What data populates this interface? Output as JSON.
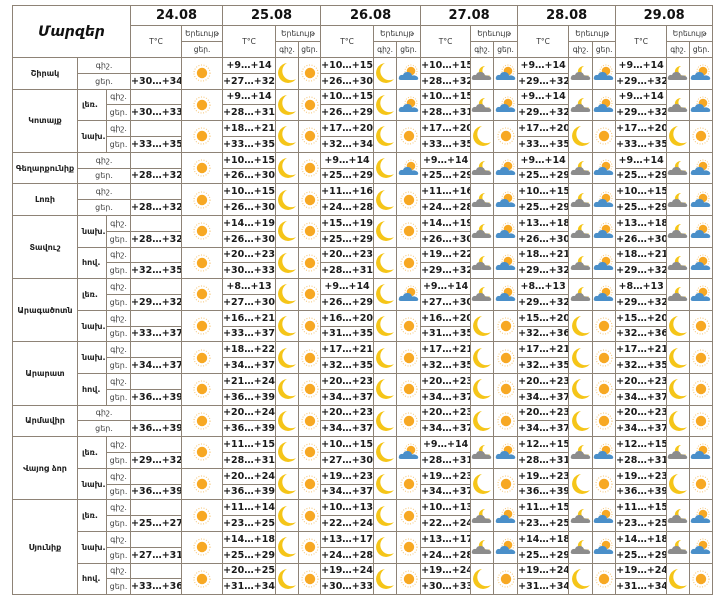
{
  "header": {
    "title": "Մարզեր",
    "temp_label": "T°C",
    "phenomenon_label": "Երեւույթ",
    "night_label": "գիշ.",
    "day_label": "ցեր.",
    "dates": [
      "24.08",
      "25.08",
      "26.08",
      "27.08",
      "28.08",
      "29.08"
    ]
  },
  "colors": {
    "border": "#8e8376",
    "sun": "#f7a823",
    "moon": "#f5c518",
    "cloud_blue": "#4a8fc9",
    "cloud_gray": "#8c8c8c"
  },
  "regions": [
    {
      "name": "Շիրակ",
      "zones": [
        {
          "label": null,
          "d24": "+30…+34",
          "t": [
            [
              "+9…+14",
              "+27…+32"
            ],
            [
              "+10…+15",
              "+26…+30"
            ],
            [
              "+10…+15",
              "+28…+32"
            ],
            [
              "+9…+14",
              "+29…+32"
            ],
            [
              "+9…+14",
              "+29…+32"
            ]
          ],
          "w": [
            [
              "moon",
              "sun"
            ],
            [
              "moon",
              "cloud-sun"
            ],
            [
              "cloud-moon",
              "cloud-sun"
            ],
            [
              "cloud-moon",
              "cloud-sun"
            ],
            [
              "cloud-moon",
              "cloud-sun"
            ]
          ]
        }
      ]
    },
    {
      "name": "Կոտայք",
      "zones": [
        {
          "label": "լեռ.",
          "d24": "+30…+33",
          "t": [
            [
              "+9…+14",
              "+28…+31"
            ],
            [
              "+10…+15",
              "+26…+29"
            ],
            [
              "+10…+15",
              "+28…+31"
            ],
            [
              "+9…+14",
              "+29…+32"
            ],
            [
              "+9…+14",
              "+29…+32"
            ]
          ],
          "w": [
            [
              "moon",
              "sun"
            ],
            [
              "moon",
              "cloud-sun"
            ],
            [
              "cloud-moon",
              "cloud-sun"
            ],
            [
              "cloud-moon",
              "cloud-sun"
            ],
            [
              "cloud-moon",
              "cloud-sun"
            ]
          ]
        },
        {
          "label": "նախ.",
          "d24": "+33…+35",
          "t": [
            [
              "+18…+21",
              "+33…+35"
            ],
            [
              "+17…+20",
              "+32…+34"
            ],
            [
              "+17…+20",
              "+33…+35"
            ],
            [
              "+17…+20",
              "+33…+35"
            ],
            [
              "+17…+20",
              "+33…+35"
            ]
          ],
          "w": [
            [
              "moon",
              "sun"
            ],
            [
              "moon",
              "sun"
            ],
            [
              "moon",
              "sun"
            ],
            [
              "moon",
              "sun"
            ],
            [
              "moon",
              "sun"
            ]
          ]
        }
      ]
    },
    {
      "name": "Գեղարքունիք",
      "zones": [
        {
          "label": null,
          "d24": "+28…+32",
          "t": [
            [
              "+10…+15",
              "+26…+30"
            ],
            [
              "+9…+14",
              "+25…+29"
            ],
            [
              "+9…+14",
              "+25…+29"
            ],
            [
              "+9…+14",
              "+25…+29"
            ],
            [
              "+9…+14",
              "+25…+29"
            ]
          ],
          "w": [
            [
              "moon",
              "sun"
            ],
            [
              "moon",
              "cloud-sun"
            ],
            [
              "cloud-moon",
              "cloud-sun"
            ],
            [
              "cloud-moon",
              "cloud-sun"
            ],
            [
              "cloud-moon",
              "cloud-sun"
            ]
          ]
        }
      ]
    },
    {
      "name": "Լոռի",
      "zones": [
        {
          "label": null,
          "d24": "+28…+32",
          "t": [
            [
              "+10…+15",
              "+26…+30"
            ],
            [
              "+11…+16",
              "+24…+28"
            ],
            [
              "+11…+16",
              "+24…+28"
            ],
            [
              "+10…+15",
              "+25…+29"
            ],
            [
              "+10…+15",
              "+25…+29"
            ]
          ],
          "w": [
            [
              "moon",
              "sun"
            ],
            [
              "moon",
              "sun"
            ],
            [
              "cloud-moon",
              "cloud-sun"
            ],
            [
              "cloud-moon",
              "cloud-sun"
            ],
            [
              "cloud-moon",
              "cloud-sun"
            ]
          ]
        }
      ]
    },
    {
      "name": "Տավուշ",
      "zones": [
        {
          "label": "նախ.",
          "d24": "+28…+32",
          "t": [
            [
              "+14…+19",
              "+26…+30"
            ],
            [
              "+15…+19",
              "+25…+29"
            ],
            [
              "+14…+19",
              "+26…+30"
            ],
            [
              "+13…+18",
              "+26…+30"
            ],
            [
              "+13…+18",
              "+26…+30"
            ]
          ],
          "w": [
            [
              "moon",
              "sun"
            ],
            [
              "moon",
              "sun"
            ],
            [
              "cloud-moon",
              "cloud-sun"
            ],
            [
              "cloud-moon",
              "cloud-sun"
            ],
            [
              "cloud-moon",
              "cloud-sun"
            ]
          ]
        },
        {
          "label": "հով.",
          "d24": "+32…+35",
          "t": [
            [
              "+20…+23",
              "+30…+33"
            ],
            [
              "+20…+23",
              "+28…+31"
            ],
            [
              "+19…+22",
              "+29…+32"
            ],
            [
              "+18…+21",
              "+29…+32"
            ],
            [
              "+18…+21",
              "+29…+32"
            ]
          ],
          "w": [
            [
              "moon",
              "sun"
            ],
            [
              "moon",
              "sun"
            ],
            [
              "cloud-moon",
              "cloud-sun"
            ],
            [
              "cloud-moon",
              "cloud-sun"
            ],
            [
              "cloud-moon",
              "cloud-sun"
            ]
          ]
        }
      ]
    },
    {
      "name": "Արագածոտն",
      "zones": [
        {
          "label": "լեռ.",
          "d24": "+29…+32",
          "t": [
            [
              "+8…+13",
              "+27…+30"
            ],
            [
              "+9…+14",
              "+26…+29"
            ],
            [
              "+9…+14",
              "+27…+30"
            ],
            [
              "+8…+13",
              "+29…+32"
            ],
            [
              "+8…+13",
              "+29…+32"
            ]
          ],
          "w": [
            [
              "moon",
              "sun"
            ],
            [
              "moon",
              "cloud-sun"
            ],
            [
              "cloud-moon",
              "cloud-sun"
            ],
            [
              "cloud-moon",
              "cloud-sun"
            ],
            [
              "cloud-moon",
              "cloud-sun"
            ]
          ]
        },
        {
          "label": "նախ.",
          "d24": "+33…+37",
          "t": [
            [
              "+16…+21",
              "+33…+37"
            ],
            [
              "+16…+20",
              "+31…+35"
            ],
            [
              "+16…+20",
              "+31…+35"
            ],
            [
              "+15…+20",
              "+32…+36"
            ],
            [
              "+15…+20",
              "+32…+36"
            ]
          ],
          "w": [
            [
              "moon",
              "sun"
            ],
            [
              "moon",
              "sun"
            ],
            [
              "moon",
              "sun"
            ],
            [
              "moon",
              "sun"
            ],
            [
              "moon",
              "sun"
            ]
          ]
        }
      ]
    },
    {
      "name": "Արարատ",
      "zones": [
        {
          "label": "նախ.",
          "d24": "+34…+37",
          "t": [
            [
              "+18…+22",
              "+34…+37"
            ],
            [
              "+17…+21",
              "+32…+35"
            ],
            [
              "+17…+21",
              "+32…+35"
            ],
            [
              "+17…+21",
              "+32…+35"
            ],
            [
              "+17…+21",
              "+32…+35"
            ]
          ],
          "w": [
            [
              "moon",
              "sun"
            ],
            [
              "moon",
              "sun"
            ],
            [
              "moon",
              "sun"
            ],
            [
              "moon",
              "sun"
            ],
            [
              "moon",
              "sun"
            ]
          ]
        },
        {
          "label": "հով.",
          "d24": "+36…+39",
          "t": [
            [
              "+21…+24",
              "+36…+39"
            ],
            [
              "+20…+23",
              "+34…+37"
            ],
            [
              "+20…+23",
              "+34…+37"
            ],
            [
              "+20…+23",
              "+34…+37"
            ],
            [
              "+20…+23",
              "+34…+37"
            ]
          ],
          "w": [
            [
              "moon",
              "sun"
            ],
            [
              "moon",
              "sun"
            ],
            [
              "moon",
              "sun"
            ],
            [
              "moon",
              "sun"
            ],
            [
              "moon",
              "sun"
            ]
          ]
        }
      ]
    },
    {
      "name": "Արմավիր",
      "zones": [
        {
          "label": null,
          "d24": "+36…+39",
          "t": [
            [
              "+20…+24",
              "+36…+39"
            ],
            [
              "+20…+23",
              "+34…+37"
            ],
            [
              "+20…+23",
              "+34…+37"
            ],
            [
              "+20…+23",
              "+34…+37"
            ],
            [
              "+20…+23",
              "+34…+37"
            ]
          ],
          "w": [
            [
              "moon",
              "sun"
            ],
            [
              "moon",
              "sun"
            ],
            [
              "moon",
              "sun"
            ],
            [
              "moon",
              "sun"
            ],
            [
              "moon",
              "sun"
            ]
          ]
        }
      ]
    },
    {
      "name": "Վայոց ձոր",
      "zones": [
        {
          "label": "լեռ.",
          "d24": "+29…+32",
          "t": [
            [
              "+11…+15",
              "+28…+31"
            ],
            [
              "+10…+15",
              "+27…+30"
            ],
            [
              "+9…+14",
              "+28…+31"
            ],
            [
              "+12…+15",
              "+28…+31"
            ],
            [
              "+12…+15",
              "+28…+31"
            ]
          ],
          "w": [
            [
              "moon",
              "sun"
            ],
            [
              "moon",
              "cloud-sun"
            ],
            [
              "cloud-moon",
              "cloud-sun"
            ],
            [
              "cloud-moon",
              "cloud-sun"
            ],
            [
              "cloud-moon",
              "cloud-sun"
            ]
          ]
        },
        {
          "label": "նախ.",
          "d24": "+36…+39",
          "t": [
            [
              "+20…+24",
              "+36…+39"
            ],
            [
              "+19…+23",
              "+34…+37"
            ],
            [
              "+19…+23",
              "+34…+37"
            ],
            [
              "+19…+23",
              "+36…+39"
            ],
            [
              "+19…+23",
              "+36…+39"
            ]
          ],
          "w": [
            [
              "moon",
              "sun"
            ],
            [
              "moon",
              "sun"
            ],
            [
              "moon",
              "sun"
            ],
            [
              "moon",
              "sun"
            ],
            [
              "moon",
              "sun"
            ]
          ]
        }
      ]
    },
    {
      "name": "Սյունիք",
      "zones": [
        {
          "label": "լեռ.",
          "d24": "+25…+27",
          "t": [
            [
              "+11…+14",
              "+23…+25"
            ],
            [
              "+10…+13",
              "+22…+24"
            ],
            [
              "+10…+13",
              "+22…+24"
            ],
            [
              "+11…+15",
              "+23…+25"
            ],
            [
              "+11…+15",
              "+23…+25"
            ]
          ],
          "w": [
            [
              "moon",
              "sun"
            ],
            [
              "moon",
              "sun"
            ],
            [
              "cloud-moon",
              "cloud-sun"
            ],
            [
              "cloud-moon",
              "cloud-sun"
            ],
            [
              "cloud-moon",
              "cloud-sun"
            ]
          ]
        },
        {
          "label": "նախ.",
          "d24": "+27…+31",
          "t": [
            [
              "+14…+18",
              "+25…+29"
            ],
            [
              "+13…+17",
              "+24…+28"
            ],
            [
              "+13…+17",
              "+24…+28"
            ],
            [
              "+14…+18",
              "+25…+29"
            ],
            [
              "+14…+18",
              "+25…+29"
            ]
          ],
          "w": [
            [
              "moon",
              "sun"
            ],
            [
              "moon",
              "sun"
            ],
            [
              "cloud-moon",
              "cloud-sun"
            ],
            [
              "cloud-moon",
              "cloud-sun"
            ],
            [
              "cloud-moon",
              "cloud-sun"
            ]
          ]
        },
        {
          "label": "հով.",
          "d24": "+33…+36",
          "t": [
            [
              "+20…+25",
              "+31…+34"
            ],
            [
              "+19…+24",
              "+30…+33"
            ],
            [
              "+19…+24",
              "+30…+33"
            ],
            [
              "+19…+24",
              "+31…+34"
            ],
            [
              "+19…+24",
              "+31…+34"
            ]
          ],
          "w": [
            [
              "moon",
              "sun"
            ],
            [
              "moon",
              "sun"
            ],
            [
              "moon",
              "sun"
            ],
            [
              "moon",
              "sun"
            ],
            [
              "moon",
              "sun"
            ]
          ]
        }
      ]
    }
  ]
}
